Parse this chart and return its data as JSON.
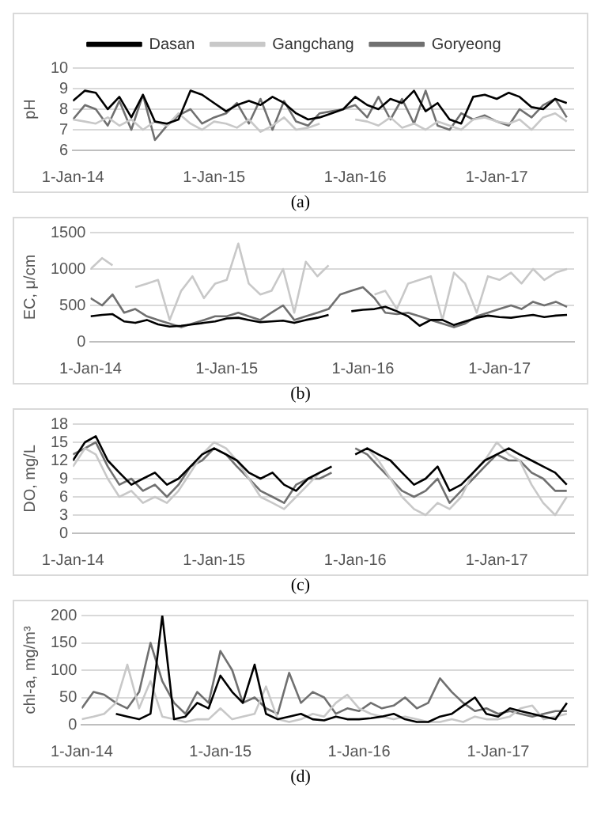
{
  "chart_data": [
    {
      "type": "line",
      "ylabel": "pH",
      "annotations": [
        "(a)"
      ],
      "grid": "y",
      "legend": "top",
      "marker": "none",
      "line_style": "solid",
      "x": [
        "2014-01-01",
        "2014-02-01",
        "2014-03-01",
        "2014-04-01",
        "2014-05-01",
        "2014-06-01",
        "2014-07-01",
        "2014-08-01",
        "2014-09-01",
        "2014-10-01",
        "2014-11-01",
        "2014-12-01",
        "2015-01-01",
        "2015-02-01",
        "2015-03-01",
        "2015-04-01",
        "2015-05-01",
        "2015-06-01",
        "2015-07-01",
        "2015-08-01",
        "2015-09-01",
        "2015-10-01",
        "2015-11-01",
        "2015-12-01",
        "2016-01-01",
        "2016-02-01",
        "2016-03-01",
        "2016-04-01",
        "2016-05-01",
        "2016-06-01",
        "2016-07-01",
        "2016-08-01",
        "2016-09-01",
        "2016-10-01",
        "2016-11-01",
        "2016-12-01",
        "2017-01-01",
        "2017-02-01",
        "2017-03-01",
        "2017-04-01",
        "2017-05-01",
        "2017-06-01",
        "2017-07-01"
      ],
      "xlim": [
        "2014-01-01",
        "2017-07-20"
      ],
      "xticks": [
        {
          "value": "2014-01-01",
          "label": "1-Jan-14"
        },
        {
          "value": "2015-01-01",
          "label": "1-Jan-15"
        },
        {
          "value": "2016-01-01",
          "label": "1-Jan-16"
        },
        {
          "value": "2017-01-01",
          "label": "1-Jan-17"
        }
      ],
      "ylim": [
        6,
        10
      ],
      "yticks": [
        6,
        7,
        8,
        9,
        10
      ],
      "series": [
        {
          "name": "Dasan",
          "color": "#000000",
          "values": [
            8.4,
            8.9,
            8.8,
            8.0,
            8.6,
            7.6,
            8.7,
            7.4,
            7.3,
            7.5,
            8.9,
            8.7,
            8.3,
            7.9,
            8.2,
            8.4,
            8.2,
            8.6,
            8.3,
            7.8,
            7.5,
            7.6,
            7.8,
            8.0,
            8.6,
            8.2,
            8.0,
            8.5,
            8.3,
            8.9,
            7.9,
            8.3,
            7.5,
            7.3,
            8.6,
            8.7,
            8.5,
            8.8,
            8.6,
            8.1,
            8.0,
            8.5,
            8.3
          ]
        },
        {
          "name": "Gangchang",
          "color": "#c8c8c8",
          "values": [
            7.5,
            7.4,
            7.3,
            7.6,
            7.2,
            7.5,
            7.0,
            7.4,
            7.2,
            7.8,
            7.3,
            7.0,
            7.4,
            7.3,
            7.1,
            7.5,
            6.9,
            7.2,
            7.6,
            7.0,
            7.1,
            7.3,
            null,
            null,
            7.5,
            7.4,
            7.2,
            7.6,
            7.1,
            7.3,
            7.0,
            7.4,
            7.2,
            7.0,
            7.5,
            7.6,
            7.4,
            7.3,
            7.5,
            7.0,
            7.6,
            7.8,
            7.4
          ]
        },
        {
          "name": "Goryeong",
          "color": "#707070",
          "values": [
            7.5,
            8.2,
            8.0,
            7.2,
            8.4,
            7.0,
            8.7,
            6.5,
            7.2,
            7.7,
            8.0,
            7.3,
            7.6,
            7.8,
            8.3,
            7.3,
            8.5,
            7.0,
            8.4,
            7.4,
            7.2,
            7.8,
            7.9,
            8.0,
            8.2,
            7.6,
            8.6,
            7.5,
            8.5,
            7.3,
            8.9,
            7.2,
            7.0,
            7.8,
            7.5,
            7.7,
            7.4,
            7.2,
            8.0,
            7.6,
            8.2,
            8.5,
            7.6
          ]
        }
      ]
    },
    {
      "type": "line",
      "ylabel": "EC, μ/cm",
      "annotations": [
        "(b)"
      ],
      "grid": "y",
      "legend": false,
      "marker": "none",
      "line_style": "solid",
      "x": [
        "2014-01-01",
        "2014-02-01",
        "2014-03-01",
        "2014-04-01",
        "2014-05-01",
        "2014-06-01",
        "2014-07-01",
        "2014-08-01",
        "2014-09-01",
        "2014-10-01",
        "2014-11-01",
        "2014-12-01",
        "2015-01-01",
        "2015-02-01",
        "2015-03-01",
        "2015-04-01",
        "2015-05-01",
        "2015-06-01",
        "2015-07-01",
        "2015-08-01",
        "2015-09-01",
        "2015-10-01",
        "2015-11-01",
        "2015-12-01",
        "2016-01-01",
        "2016-02-01",
        "2016-03-01",
        "2016-04-01",
        "2016-05-01",
        "2016-06-01",
        "2016-07-01",
        "2016-08-01",
        "2016-09-01",
        "2016-10-01",
        "2016-11-01",
        "2016-12-01",
        "2017-01-01",
        "2017-02-01",
        "2017-03-01",
        "2017-04-01",
        "2017-05-01",
        "2017-06-01",
        "2017-07-01"
      ],
      "xlim": [
        "2014-01-01",
        "2017-07-20"
      ],
      "xticks": [
        {
          "value": "2014-01-01",
          "label": "1-Jan-14"
        },
        {
          "value": "2015-01-01",
          "label": "1-Jan-15"
        },
        {
          "value": "2016-01-01",
          "label": "1-Jan-16"
        },
        {
          "value": "2017-01-01",
          "label": "1-Jan-17"
        }
      ],
      "ylim": [
        0,
        1500
      ],
      "yticks": [
        0,
        500,
        1000,
        1500
      ],
      "series": [
        {
          "color": "#000000",
          "values": [
            350,
            370,
            380,
            280,
            260,
            300,
            240,
            210,
            220,
            240,
            260,
            280,
            320,
            330,
            300,
            270,
            280,
            290,
            260,
            300,
            330,
            370,
            null,
            420,
            440,
            450,
            480,
            420,
            350,
            220,
            300,
            300,
            230,
            280,
            330,
            360,
            340,
            330,
            350,
            370,
            340,
            360,
            370
          ]
        },
        {
          "color": "#c8c8c8",
          "values": [
            1000,
            1150,
            1050,
            null,
            750,
            800,
            850,
            300,
            700,
            900,
            600,
            800,
            850,
            1350,
            800,
            650,
            700,
            1000,
            400,
            1100,
            900,
            1050,
            null,
            null,
            null,
            650,
            700,
            450,
            800,
            850,
            900,
            300,
            950,
            800,
            400,
            900,
            850,
            950,
            800,
            1000,
            850,
            950,
            1000
          ]
        },
        {
          "color": "#707070",
          "values": [
            600,
            500,
            650,
            400,
            450,
            350,
            300,
            250,
            200,
            250,
            300,
            350,
            350,
            400,
            350,
            300,
            400,
            500,
            300,
            350,
            400,
            450,
            650,
            700,
            750,
            600,
            400,
            380,
            400,
            350,
            300,
            250,
            200,
            250,
            350,
            400,
            450,
            500,
            450,
            550,
            500,
            550,
            480
          ]
        }
      ]
    },
    {
      "type": "line",
      "ylabel": "DO, mg/L",
      "annotations": [
        "(c)"
      ],
      "grid": "y",
      "legend": false,
      "marker": "none",
      "line_style": "solid",
      "x": [
        "2014-01-01",
        "2014-02-01",
        "2014-03-01",
        "2014-04-01",
        "2014-05-01",
        "2014-06-01",
        "2014-07-01",
        "2014-08-01",
        "2014-09-01",
        "2014-10-01",
        "2014-11-01",
        "2014-12-01",
        "2015-01-01",
        "2015-02-01",
        "2015-03-01",
        "2015-04-01",
        "2015-05-01",
        "2015-06-01",
        "2015-07-01",
        "2015-08-01",
        "2015-09-01",
        "2015-10-01",
        "2015-11-01",
        "2015-12-01",
        "2016-01-01",
        "2016-02-01",
        "2016-03-01",
        "2016-04-01",
        "2016-05-01",
        "2016-06-01",
        "2016-07-01",
        "2016-08-01",
        "2016-09-01",
        "2016-10-01",
        "2016-11-01",
        "2016-12-01",
        "2017-01-01",
        "2017-02-01",
        "2017-03-01",
        "2017-04-01",
        "2017-05-01",
        "2017-06-01",
        "2017-07-01"
      ],
      "xlim": [
        "2014-01-01",
        "2017-07-20"
      ],
      "xticks": [
        {
          "value": "2014-01-01",
          "label": "1-Jan-14"
        },
        {
          "value": "2015-01-01",
          "label": "1-Jan-15"
        },
        {
          "value": "2016-01-01",
          "label": "1-Jan-16"
        },
        {
          "value": "2017-01-01",
          "label": "1-Jan-17"
        }
      ],
      "ylim": [
        0,
        18
      ],
      "yticks": [
        0,
        3,
        6,
        9,
        12,
        15,
        18
      ],
      "series": [
        {
          "color": "#000000",
          "values": [
            12,
            15,
            16,
            12,
            10,
            8,
            9,
            10,
            8,
            9,
            11,
            13,
            14,
            13,
            12,
            10,
            9,
            10,
            8,
            7,
            9,
            10,
            11,
            null,
            13,
            14,
            13,
            12,
            10,
            8,
            9,
            11,
            7,
            8,
            10,
            12,
            13,
            14,
            13,
            12,
            11,
            10,
            8
          ]
        },
        {
          "color": "#c8c8c8",
          "values": [
            11,
            14,
            13,
            9,
            6,
            7,
            5,
            6,
            5,
            7,
            10,
            13,
            15,
            14,
            12,
            9,
            6,
            5,
            4,
            6,
            8,
            10,
            11,
            null,
            13,
            14,
            12,
            9,
            6,
            4,
            3,
            5,
            4,
            6,
            10,
            12,
            15,
            13,
            12,
            8,
            5,
            3,
            6
          ]
        },
        {
          "color": "#707070",
          "values": [
            13,
            14,
            15,
            11,
            8,
            9,
            7,
            8,
            6,
            8,
            11,
            12,
            14,
            13,
            11,
            9,
            7,
            6,
            5,
            8,
            9,
            9,
            10,
            null,
            14,
            13,
            11,
            9,
            7,
            6,
            7,
            9,
            5,
            7,
            9,
            11,
            13,
            12,
            12,
            10,
            9,
            7,
            7
          ]
        }
      ]
    },
    {
      "type": "line",
      "ylabel": "chl-a, mg/m³",
      "annotations": [
        "(d)"
      ],
      "grid": "y",
      "legend": false,
      "marker": "none",
      "line_style": "solid",
      "x": [
        "2014-01-01",
        "2014-02-01",
        "2014-03-01",
        "2014-04-01",
        "2014-05-01",
        "2014-06-01",
        "2014-07-01",
        "2014-08-01",
        "2014-09-01",
        "2014-10-01",
        "2014-11-01",
        "2014-12-01",
        "2015-01-01",
        "2015-02-01",
        "2015-03-01",
        "2015-04-01",
        "2015-05-01",
        "2015-06-01",
        "2015-07-01",
        "2015-08-01",
        "2015-09-01",
        "2015-10-01",
        "2015-11-01",
        "2015-12-01",
        "2016-01-01",
        "2016-02-01",
        "2016-03-01",
        "2016-04-01",
        "2016-05-01",
        "2016-06-01",
        "2016-07-01",
        "2016-08-01",
        "2016-09-01",
        "2016-10-01",
        "2016-11-01",
        "2016-12-01",
        "2017-01-01",
        "2017-02-01",
        "2017-03-01",
        "2017-04-01",
        "2017-05-01",
        "2017-06-01",
        "2017-07-01"
      ],
      "xlim": [
        "2014-01-01",
        "2017-07-20"
      ],
      "xticks": [
        {
          "value": "2014-01-01",
          "label": "1-Jan-14"
        },
        {
          "value": "2015-01-01",
          "label": "1-Jan-15"
        },
        {
          "value": "2016-01-01",
          "label": "1-Jan-16"
        },
        {
          "value": "2017-01-01",
          "label": "1-Jan-17"
        }
      ],
      "ylim": [
        0,
        200
      ],
      "yticks": [
        0,
        50,
        100,
        150,
        200
      ],
      "series": [
        {
          "color": "#000000",
          "values": [
            null,
            null,
            null,
            20,
            15,
            10,
            20,
            200,
            10,
            15,
            40,
            30,
            90,
            60,
            40,
            110,
            20,
            10,
            15,
            20,
            10,
            8,
            15,
            10,
            10,
            12,
            15,
            20,
            10,
            5,
            5,
            15,
            20,
            35,
            50,
            20,
            15,
            30,
            25,
            20,
            15,
            10,
            40
          ]
        },
        {
          "color": "#c8c8c8",
          "values": [
            10,
            15,
            20,
            40,
            110,
            30,
            80,
            15,
            10,
            5,
            10,
            10,
            30,
            10,
            15,
            20,
            70,
            10,
            5,
            10,
            20,
            15,
            40,
            55,
            30,
            20,
            15,
            10,
            15,
            10,
            5,
            5,
            10,
            5,
            15,
            10,
            10,
            15,
            30,
            35,
            10,
            15,
            20
          ]
        },
        {
          "color": "#707070",
          "values": [
            30,
            60,
            55,
            40,
            30,
            60,
            150,
            80,
            40,
            20,
            60,
            40,
            135,
            100,
            40,
            50,
            30,
            20,
            95,
            40,
            60,
            50,
            20,
            30,
            25,
            40,
            30,
            35,
            50,
            30,
            40,
            85,
            60,
            40,
            25,
            30,
            20,
            25,
            20,
            15,
            20,
            25,
            25
          ]
        }
      ]
    }
  ]
}
